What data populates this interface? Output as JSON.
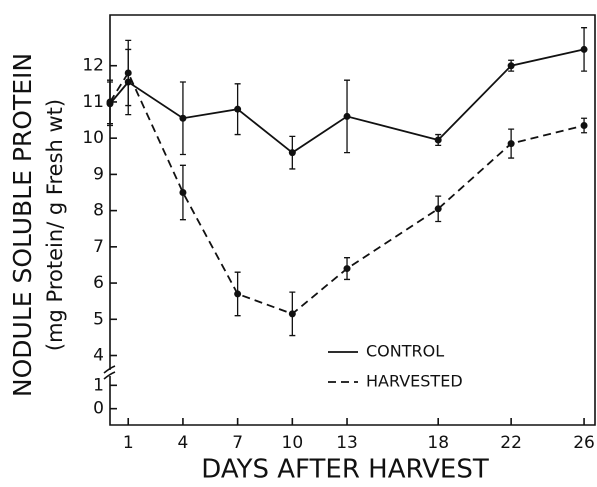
{
  "chart_data": {
    "type": "line",
    "ylabel": "NODULE SOLUBLE PROTEIN",
    "ylabel2": "(mg Protein/ g Fresh wt)",
    "xlabel": "DAYS AFTER HARVEST",
    "x": [
      0,
      1,
      4,
      7,
      10,
      13,
      18,
      22,
      26
    ],
    "xlim": [
      0,
      26.6
    ],
    "xticks": [
      1,
      4,
      7,
      10,
      13,
      18,
      22,
      26
    ],
    "ylim": [
      -0.7,
      13.4
    ],
    "y_break": [
      1.4,
      3.6
    ],
    "yticks": [
      0,
      1,
      4,
      5,
      6,
      7,
      8,
      9,
      10,
      11,
      12
    ],
    "legend": "lower right",
    "series": [
      {
        "name": "CONTROL",
        "color": "#111111",
        "dash": "solid",
        "values": [
          10.95,
          11.55,
          10.55,
          10.8,
          9.6,
          10.6,
          9.95,
          12.0,
          12.45
        ],
        "errors": [
          0.6,
          0.9,
          1.0,
          0.7,
          0.45,
          1.0,
          0.15,
          0.15,
          0.6
        ]
      },
      {
        "name": "HARVESTED",
        "color": "#111111",
        "dash": "dashed",
        "values": [
          11.0,
          11.8,
          8.5,
          5.7,
          5.15,
          6.4,
          8.05,
          9.85,
          10.35
        ],
        "errors": [
          0.6,
          0.9,
          0.75,
          0.6,
          0.6,
          0.3,
          0.35,
          0.4,
          0.2
        ]
      }
    ]
  }
}
